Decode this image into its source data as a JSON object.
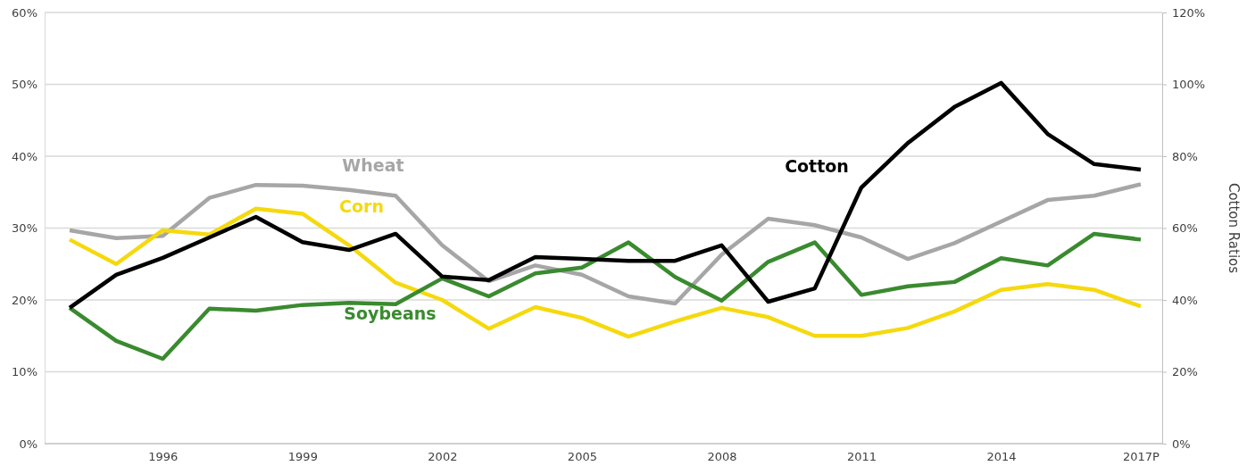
{
  "chart_data": {
    "type": "line",
    "y2label": "Cotton Ratios",
    "categories": [
      null,
      null,
      "1996",
      null,
      null,
      "1999",
      null,
      null,
      "2002",
      null,
      null,
      "2005",
      null,
      null,
      "2008",
      null,
      null,
      "2011",
      null,
      null,
      "2014",
      null,
      null,
      "2017P"
    ],
    "series": [
      {
        "name": "Wheat",
        "color": "#a6a6a6",
        "values": [
          29.7,
          28.6,
          28.9,
          34.2,
          36.0,
          35.9,
          35.3,
          34.5,
          27.6,
          22.6,
          24.8,
          23.5,
          20.5,
          19.5,
          26.3,
          31.3,
          30.4,
          28.7,
          25.7,
          27.9,
          30.9,
          33.9,
          34.5,
          36.1
        ]
      },
      {
        "name": "Corn",
        "color": "#f5d90f",
        "values": [
          28.4,
          25.0,
          29.7,
          29.1,
          32.7,
          32.0,
          27.6,
          22.4,
          20.0,
          16.0,
          19.0,
          17.5,
          14.9,
          17.0,
          18.9,
          17.6,
          15.0,
          15.0,
          16.1,
          18.4,
          21.4,
          22.2,
          21.4,
          19.1
        ]
      },
      {
        "name": "Soybeans",
        "color": "#3a8a2f",
        "values": [
          18.9,
          14.3,
          11.8,
          18.8,
          18.5,
          19.3,
          19.6,
          19.4,
          23.0,
          20.5,
          23.7,
          24.5,
          28.0,
          23.2,
          19.9,
          25.3,
          28.0,
          20.7,
          21.9,
          22.5,
          25.8,
          24.8,
          29.2,
          28.4
        ]
      },
      {
        "name": "Cotton",
        "color": "#000000",
        "axis": "y2",
        "values": [
          37.8,
          47,
          51.7,
          57.4,
          63.1,
          56.1,
          53.9,
          58.4,
          46.5,
          45.5,
          51.9,
          51.4,
          50.9,
          50.9,
          55.2,
          39.5,
          43.2,
          71.3,
          83.7,
          93.7,
          100.4,
          86.2,
          77.8,
          76.3
        ]
      }
    ],
    "ylim": [
      0,
      60
    ],
    "yticks": [
      {
        "value": 0,
        "label": "0%"
      },
      {
        "value": 10,
        "label": "10%"
      },
      {
        "value": 20,
        "label": "20%"
      },
      {
        "value": 30,
        "label": "30%"
      },
      {
        "value": 40,
        "label": "40%"
      },
      {
        "value": 50,
        "label": "50%"
      },
      {
        "value": 60,
        "label": "60%"
      }
    ],
    "y2lim": [
      0,
      120
    ],
    "y2ticks": [
      {
        "value": 0,
        "label": "0%"
      },
      {
        "value": 20,
        "label": "20%"
      },
      {
        "value": 40,
        "label": "40%"
      },
      {
        "value": 60,
        "label": "60%"
      },
      {
        "value": 80,
        "label": "80%"
      },
      {
        "value": 100,
        "label": "100%"
      },
      {
        "value": 120,
        "label": "120%"
      }
    ],
    "grid": "y",
    "legend": false
  }
}
